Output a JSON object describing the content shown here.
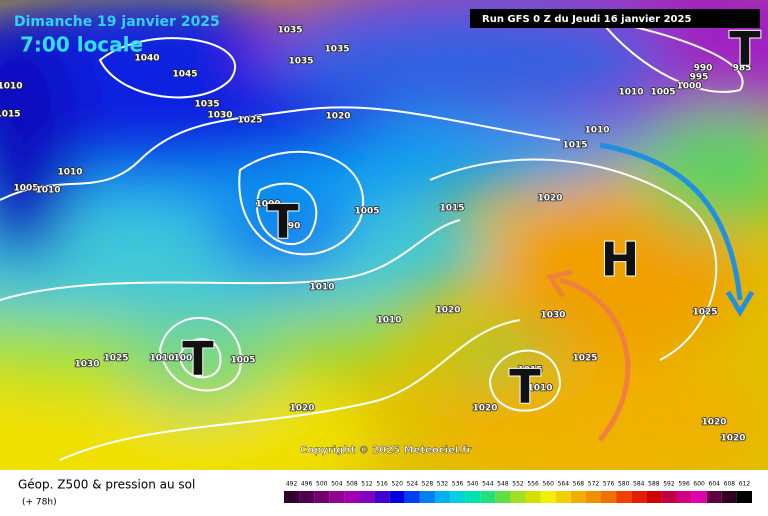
{
  "header": {
    "date": "Dimanche 19 janvier 2025",
    "time": "7:00 locale",
    "run": "Run GFS 0 Z du Jeudi 16 janvier 2025"
  },
  "copyright": "Copyright © 2025 Meteociel.fr",
  "legend": {
    "title": "Géop. Z500 & pression au sol",
    "lead": "(+ 78h)",
    "labels": [
      "492",
      "496",
      "500",
      "504",
      "508",
      "512",
      "516",
      "520",
      "524",
      "528",
      "532",
      "536",
      "540",
      "544",
      "548",
      "552",
      "556",
      "560",
      "564",
      "568",
      "572",
      "576",
      "580",
      "584",
      "588",
      "592",
      "596",
      "600",
      "604",
      "608",
      "612"
    ]
  },
  "centers": [
    "H",
    "T",
    "T",
    "T",
    "T"
  ],
  "isobar_labels": [
    "1035",
    "1035",
    "1035",
    "1040",
    "1045",
    "1010",
    "1015",
    "1035",
    "1030",
    "1025",
    "1020",
    "1005",
    "1010",
    "1010",
    "1000",
    "990",
    "1005",
    "1015",
    "1020",
    "1010",
    "1010",
    "1020",
    "1030",
    "1025",
    "1025",
    "1030",
    "1025",
    "1010",
    "1000",
    "1005",
    "1015",
    "1010",
    "1020",
    "1020",
    "1020",
    "1020",
    "1010",
    "1005",
    "1000",
    "990",
    "995",
    "985",
    "1010",
    "1015"
  ]
}
